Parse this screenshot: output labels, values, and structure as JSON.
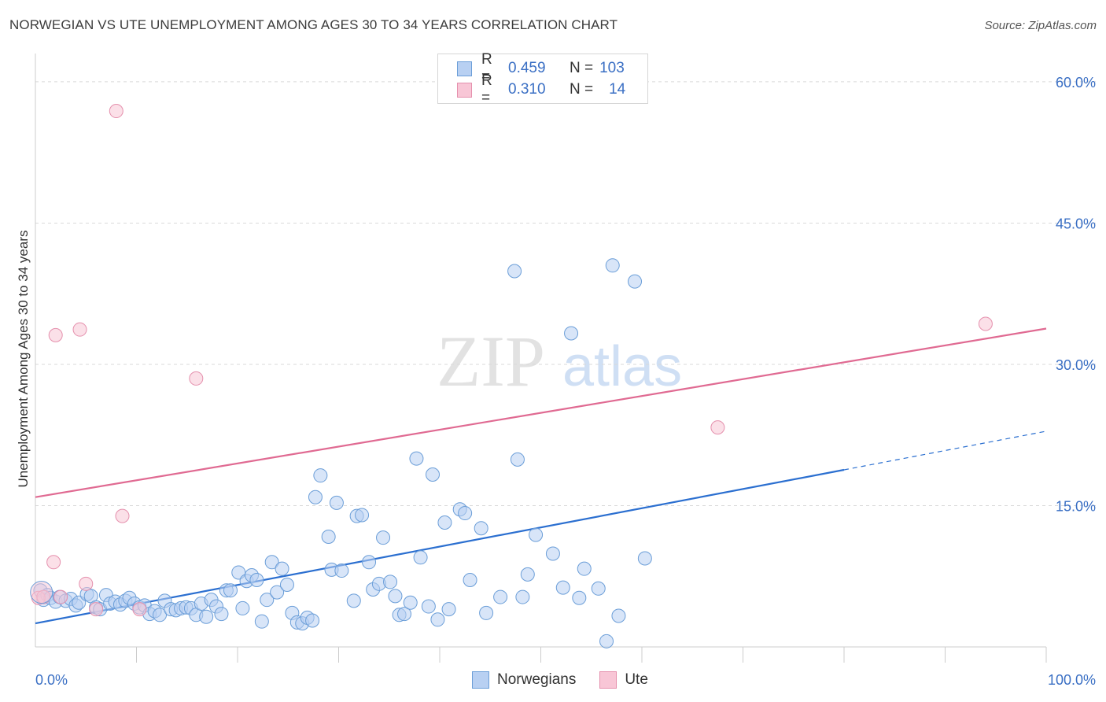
{
  "header": {
    "title": "NORWEGIAN VS UTE UNEMPLOYMENT AMONG AGES 30 TO 34 YEARS CORRELATION CHART",
    "source": "Source: ZipAtlas.com"
  },
  "legend_top": {
    "rows": [
      {
        "r_label": "R =",
        "r_value": "0.459",
        "n_label": "N =",
        "n_value": "103"
      },
      {
        "r_label": "R =",
        "r_value": "0.310",
        "n_label": "N =",
        "n_value": "14"
      }
    ]
  },
  "watermark": {
    "part1": "ZIP",
    "part2": "atlas"
  },
  "colors": {
    "norwegians_fill": "#b8d0f2",
    "norwegians_stroke": "#6b9ed8",
    "norwegians_line": "#2b6fd0",
    "ute_fill": "#f8c6d6",
    "ute_stroke": "#e590ad",
    "ute_line": "#e06a92",
    "grid": "#d9d9d9",
    "tick_label": "#3a6fc4"
  },
  "chart_data": {
    "type": "scatter",
    "title": "NORWEGIAN VS UTE UNEMPLOYMENT AMONG AGES 30 TO 34 YEARS CORRELATION CHART",
    "xlabel": "",
    "ylabel": "Unemployment Among Ages 30 to 34 years",
    "xlim": [
      0,
      100
    ],
    "ylim": [
      0,
      62
    ],
    "x_tick_labels": [
      "0.0%",
      "100.0%"
    ],
    "y_ticks": [
      15,
      30,
      45,
      60
    ],
    "y_tick_labels": [
      "15.0%",
      "30.0%",
      "45.0%",
      "60.0%"
    ],
    "grid": true,
    "legend_position": "top-center",
    "series": [
      {
        "name": "Norwegians",
        "r": 0.459,
        "n": 103,
        "trend": {
          "x0": 0,
          "y0": 2.5,
          "x1": 80,
          "y1": 18.8,
          "dash_x1": 100,
          "dash_y1": 22.9
        },
        "points": [
          [
            0.5,
            6.0
          ],
          [
            0.8,
            5.0
          ],
          [
            1.2,
            5.5
          ],
          [
            1.5,
            5.2
          ],
          [
            2.0,
            4.8
          ],
          [
            2.4,
            5.3
          ],
          [
            3.0,
            4.9
          ],
          [
            3.5,
            5.1
          ],
          [
            4.0,
            4.4
          ],
          [
            4.3,
            4.7
          ],
          [
            5.1,
            5.6
          ],
          [
            5.5,
            5.4
          ],
          [
            6.0,
            4.2
          ],
          [
            6.4,
            4.0
          ],
          [
            7.0,
            5.5
          ],
          [
            7.4,
            4.6
          ],
          [
            7.9,
            4.8
          ],
          [
            8.4,
            4.5
          ],
          [
            8.9,
            4.9
          ],
          [
            9.3,
            5.2
          ],
          [
            9.8,
            4.6
          ],
          [
            10.3,
            4.2
          ],
          [
            10.8,
            4.4
          ],
          [
            11.3,
            3.5
          ],
          [
            11.8,
            3.8
          ],
          [
            12.3,
            3.4
          ],
          [
            12.8,
            4.9
          ],
          [
            13.4,
            4.0
          ],
          [
            13.9,
            3.9
          ],
          [
            14.4,
            4.1
          ],
          [
            14.9,
            4.2
          ],
          [
            15.4,
            4.1
          ],
          [
            15.9,
            3.4
          ],
          [
            16.4,
            4.6
          ],
          [
            16.9,
            3.2
          ],
          [
            17.4,
            5.0
          ],
          [
            17.9,
            4.3
          ],
          [
            18.4,
            3.5
          ],
          [
            18.9,
            6.0
          ],
          [
            19.3,
            6.0
          ],
          [
            20.1,
            7.9
          ],
          [
            20.5,
            4.1
          ],
          [
            20.9,
            7.0
          ],
          [
            21.4,
            7.6
          ],
          [
            21.9,
            7.1
          ],
          [
            22.4,
            2.7
          ],
          [
            22.9,
            5.0
          ],
          [
            23.4,
            9.0
          ],
          [
            23.9,
            5.8
          ],
          [
            24.4,
            8.3
          ],
          [
            24.9,
            6.6
          ],
          [
            25.4,
            3.6
          ],
          [
            25.9,
            2.6
          ],
          [
            26.4,
            2.5
          ],
          [
            26.9,
            3.1
          ],
          [
            27.4,
            2.8
          ],
          [
            27.7,
            15.9
          ],
          [
            28.2,
            18.2
          ],
          [
            29.0,
            11.7
          ],
          [
            29.3,
            8.2
          ],
          [
            29.8,
            15.3
          ],
          [
            30.3,
            8.1
          ],
          [
            31.5,
            4.9
          ],
          [
            31.8,
            13.9
          ],
          [
            32.3,
            14.0
          ],
          [
            33.0,
            9.0
          ],
          [
            33.4,
            6.1
          ],
          [
            34.0,
            6.7
          ],
          [
            34.4,
            11.6
          ],
          [
            35.1,
            6.9
          ],
          [
            35.6,
            5.4
          ],
          [
            36.0,
            3.4
          ],
          [
            36.5,
            3.5
          ],
          [
            37.1,
            4.7
          ],
          [
            37.7,
            20.0
          ],
          [
            38.1,
            9.5
          ],
          [
            38.9,
            4.3
          ],
          [
            39.3,
            18.3
          ],
          [
            39.8,
            2.9
          ],
          [
            40.5,
            13.2
          ],
          [
            40.9,
            4.0
          ],
          [
            42.0,
            14.6
          ],
          [
            42.5,
            14.2
          ],
          [
            43.0,
            7.1
          ],
          [
            44.1,
            12.6
          ],
          [
            44.6,
            3.6
          ],
          [
            46.0,
            5.3
          ],
          [
            47.4,
            39.9
          ],
          [
            47.7,
            19.9
          ],
          [
            48.2,
            5.3
          ],
          [
            48.7,
            7.7
          ],
          [
            49.5,
            11.9
          ],
          [
            51.2,
            9.9
          ],
          [
            52.2,
            6.3
          ],
          [
            53.0,
            33.3
          ],
          [
            53.8,
            5.2
          ],
          [
            54.3,
            8.3
          ],
          [
            55.7,
            6.2
          ],
          [
            56.5,
            0.6
          ],
          [
            57.1,
            40.5
          ],
          [
            57.7,
            3.3
          ],
          [
            59.3,
            38.8
          ],
          [
            60.3,
            9.4
          ]
        ]
      },
      {
        "name": "Ute",
        "r": 0.31,
        "n": 14,
        "trend": {
          "x0": 0,
          "y0": 15.9,
          "x1": 100,
          "y1": 33.8
        },
        "points": [
          [
            0.3,
            5.2
          ],
          [
            0.8,
            5.3
          ],
          [
            1.8,
            9.0
          ],
          [
            2.0,
            33.1
          ],
          [
            2.5,
            5.3
          ],
          [
            4.4,
            33.7
          ],
          [
            5.0,
            6.7
          ],
          [
            6.0,
            4.0
          ],
          [
            8.0,
            56.9
          ],
          [
            8.6,
            13.9
          ],
          [
            10.3,
            4.0
          ],
          [
            15.9,
            28.5
          ],
          [
            67.5,
            23.3
          ],
          [
            94.0,
            34.3
          ]
        ]
      }
    ]
  },
  "legend_bottom": {
    "items": [
      "Norwegians",
      "Ute"
    ]
  }
}
